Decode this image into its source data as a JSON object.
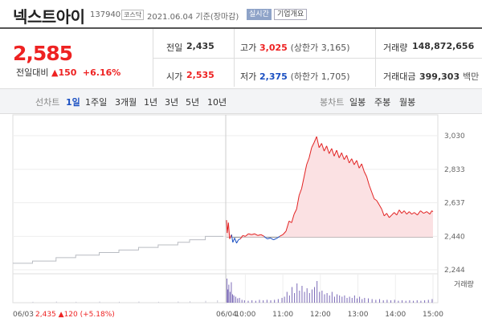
{
  "header": {
    "title": "넥스트아이",
    "code": "137940",
    "market": "코스닥",
    "date_info": "2021.06.04 기준(장마감)",
    "realtime_button": "실시간",
    "company_button": "기업개요"
  },
  "quote": {
    "price": "2,585",
    "change_label": "전일대비",
    "change_arrow": "▲",
    "change_amount": "150",
    "change_percent": "+6.16%"
  },
  "stats": {
    "prev_label": "전일",
    "prev_value": "2,435",
    "high_label": "고가",
    "high_value": "3,025",
    "upper_limit": "(상한가 3,165)",
    "volume_label": "거래량",
    "volume_value": "148,872,656",
    "open_label": "시가",
    "open_value": "2,535",
    "low_label": "저가",
    "low_value": "2,375",
    "lower_limit": "(하한가 1,705)",
    "amount_label": "거래대금",
    "amount_value": "399,303",
    "amount_unit": "백만"
  },
  "periods": {
    "line_chart": "선차트",
    "items": [
      "1일",
      "1주일",
      "3개월",
      "1년",
      "3년",
      "5년",
      "10년"
    ],
    "selected": "1일",
    "candle_chart": "봉차트",
    "candle_items": [
      "일봉",
      "주봉",
      "월봉"
    ]
  },
  "colors": {
    "up": "#e22222",
    "down": "#1a4fc2",
    "prev_day": "#b9bcc2",
    "fill": "#fbe1e3"
  },
  "chart_data": {
    "type": "line",
    "yticks": [
      3030,
      2833,
      2637,
      2440,
      2244
    ],
    "ytick_labels": [
      "3,030",
      "2,833",
      "2,637",
      "2,440",
      "2,244"
    ],
    "ylim": [
      2244,
      3030
    ],
    "xticks": [
      {
        "t": 0,
        "label": "06/04"
      },
      {
        "t": 30,
        "label": "10:00"
      },
      {
        "t": 90,
        "label": "11:00"
      },
      {
        "t": 150,
        "label": "12:00"
      },
      {
        "t": 210,
        "label": "13:00"
      },
      {
        "t": 270,
        "label": "14:00"
      },
      {
        "t": 330,
        "label": "15:00"
      }
    ],
    "prev_day_label": "06/03",
    "prev_day_close": "2,435",
    "prev_day_arrow": "▲",
    "prev_day_change": "120",
    "prev_day_change_pct": "(+5.18%)",
    "volume_legend": "거래량",
    "baseline": 2435,
    "prev_series": [
      {
        "t": -270,
        "y": 2282
      },
      {
        "t": -245,
        "y": 2282
      },
      {
        "t": -245,
        "y": 2295
      },
      {
        "t": -215,
        "y": 2295
      },
      {
        "t": -215,
        "y": 2315
      },
      {
        "t": -190,
        "y": 2315
      },
      {
        "t": -190,
        "y": 2330
      },
      {
        "t": -160,
        "y": 2330
      },
      {
        "t": -160,
        "y": 2345
      },
      {
        "t": -135,
        "y": 2345
      },
      {
        "t": -135,
        "y": 2360
      },
      {
        "t": -110,
        "y": 2360
      },
      {
        "t": -110,
        "y": 2375
      },
      {
        "t": -85,
        "y": 2375
      },
      {
        "t": -85,
        "y": 2390
      },
      {
        "t": -60,
        "y": 2390
      },
      {
        "t": -60,
        "y": 2405
      },
      {
        "t": -45,
        "y": 2405
      },
      {
        "t": -45,
        "y": 2420
      },
      {
        "t": -25,
        "y": 2420
      },
      {
        "t": -25,
        "y": 2440
      },
      {
        "t": -2,
        "y": 2440
      }
    ],
    "day_series": [
      {
        "t": 0,
        "y": 2535
      },
      {
        "t": 1,
        "y": 2460
      },
      {
        "t": 3,
        "y": 2520
      },
      {
        "t": 5,
        "y": 2425
      },
      {
        "t": 8,
        "y": 2450
      },
      {
        "t": 10,
        "y": 2405
      },
      {
        "t": 13,
        "y": 2430
      },
      {
        "t": 16,
        "y": 2400
      },
      {
        "t": 19,
        "y": 2420
      },
      {
        "t": 22,
        "y": 2425
      },
      {
        "t": 26,
        "y": 2445
      },
      {
        "t": 30,
        "y": 2440
      },
      {
        "t": 35,
        "y": 2455
      },
      {
        "t": 40,
        "y": 2450
      },
      {
        "t": 45,
        "y": 2455
      },
      {
        "t": 50,
        "y": 2445
      },
      {
        "t": 55,
        "y": 2450
      },
      {
        "t": 60,
        "y": 2440
      },
      {
        "t": 65,
        "y": 2425
      },
      {
        "t": 70,
        "y": 2430
      },
      {
        "t": 75,
        "y": 2420
      },
      {
        "t": 80,
        "y": 2428
      },
      {
        "t": 85,
        "y": 2440
      },
      {
        "t": 90,
        "y": 2450
      },
      {
        "t": 95,
        "y": 2470
      },
      {
        "t": 100,
        "y": 2530
      },
      {
        "t": 104,
        "y": 2520
      },
      {
        "t": 108,
        "y": 2570
      },
      {
        "t": 112,
        "y": 2600
      },
      {
        "t": 116,
        "y": 2680
      },
      {
        "t": 120,
        "y": 2720
      },
      {
        "t": 124,
        "y": 2790
      },
      {
        "t": 128,
        "y": 2860
      },
      {
        "t": 132,
        "y": 2900
      },
      {
        "t": 136,
        "y": 2960
      },
      {
        "t": 140,
        "y": 2990
      },
      {
        "t": 144,
        "y": 3025
      },
      {
        "t": 148,
        "y": 2960
      },
      {
        "t": 152,
        "y": 2985
      },
      {
        "t": 156,
        "y": 2940
      },
      {
        "t": 160,
        "y": 2970
      },
      {
        "t": 164,
        "y": 2925
      },
      {
        "t": 168,
        "y": 2955
      },
      {
        "t": 172,
        "y": 2910
      },
      {
        "t": 176,
        "y": 2945
      },
      {
        "t": 180,
        "y": 2900
      },
      {
        "t": 184,
        "y": 2930
      },
      {
        "t": 188,
        "y": 2890
      },
      {
        "t": 192,
        "y": 2915
      },
      {
        "t": 196,
        "y": 2870
      },
      {
        "t": 200,
        "y": 2895
      },
      {
        "t": 204,
        "y": 2860
      },
      {
        "t": 208,
        "y": 2885
      },
      {
        "t": 212,
        "y": 2840
      },
      {
        "t": 216,
        "y": 2865
      },
      {
        "t": 220,
        "y": 2820
      },
      {
        "t": 224,
        "y": 2790
      },
      {
        "t": 228,
        "y": 2740
      },
      {
        "t": 232,
        "y": 2700
      },
      {
        "t": 236,
        "y": 2660
      },
      {
        "t": 240,
        "y": 2650
      },
      {
        "t": 244,
        "y": 2625
      },
      {
        "t": 248,
        "y": 2600
      },
      {
        "t": 252,
        "y": 2560
      },
      {
        "t": 256,
        "y": 2575
      },
      {
        "t": 260,
        "y": 2550
      },
      {
        "t": 264,
        "y": 2565
      },
      {
        "t": 268,
        "y": 2580
      },
      {
        "t": 272,
        "y": 2565
      },
      {
        "t": 276,
        "y": 2595
      },
      {
        "t": 280,
        "y": 2575
      },
      {
        "t": 284,
        "y": 2590
      },
      {
        "t": 288,
        "y": 2570
      },
      {
        "t": 292,
        "y": 2585
      },
      {
        "t": 296,
        "y": 2570
      },
      {
        "t": 300,
        "y": 2580
      },
      {
        "t": 305,
        "y": 2565
      },
      {
        "t": 310,
        "y": 2590
      },
      {
        "t": 315,
        "y": 2575
      },
      {
        "t": 320,
        "y": 2585
      },
      {
        "t": 325,
        "y": 2570
      },
      {
        "t": 328,
        "y": 2590
      },
      {
        "t": 330,
        "y": 2585
      }
    ],
    "prev_volume": [
      {
        "t": -245,
        "v": 0.04
      },
      {
        "t": -215,
        "v": 0.05
      },
      {
        "t": -190,
        "v": 0.04
      },
      {
        "t": -160,
        "v": 0.05
      },
      {
        "t": -135,
        "v": 0.04
      },
      {
        "t": -110,
        "v": 0.05
      },
      {
        "t": -85,
        "v": 0.04
      },
      {
        "t": -60,
        "v": 0.05
      },
      {
        "t": -45,
        "v": 0.06
      },
      {
        "t": -25,
        "v": 0.08
      },
      {
        "t": -10,
        "v": 0.1
      }
    ],
    "day_volume": [
      {
        "t": 0,
        "v": 1.0
      },
      {
        "t": 1.5,
        "v": 0.55
      },
      {
        "t": 3,
        "v": 0.75
      },
      {
        "t": 5,
        "v": 0.45
      },
      {
        "t": 7,
        "v": 0.85
      },
      {
        "t": 9,
        "v": 0.35
      },
      {
        "t": 11,
        "v": 0.3
      },
      {
        "t": 14,
        "v": 0.25
      },
      {
        "t": 17,
        "v": 0.18
      },
      {
        "t": 20,
        "v": 0.2
      },
      {
        "t": 24,
        "v": 0.12
      },
      {
        "t": 28,
        "v": 0.1
      },
      {
        "t": 34,
        "v": 0.08
      },
      {
        "t": 40,
        "v": 0.1
      },
      {
        "t": 46,
        "v": 0.08
      },
      {
        "t": 52,
        "v": 0.12
      },
      {
        "t": 58,
        "v": 0.1
      },
      {
        "t": 64,
        "v": 0.12
      },
      {
        "t": 70,
        "v": 0.1
      },
      {
        "t": 76,
        "v": 0.12
      },
      {
        "t": 82,
        "v": 0.15
      },
      {
        "t": 88,
        "v": 0.2
      },
      {
        "t": 92,
        "v": 0.25
      },
      {
        "t": 96,
        "v": 0.45
      },
      {
        "t": 100,
        "v": 0.3
      },
      {
        "t": 104,
        "v": 0.65
      },
      {
        "t": 108,
        "v": 0.4
      },
      {
        "t": 112,
        "v": 0.8
      },
      {
        "t": 116,
        "v": 0.5
      },
      {
        "t": 120,
        "v": 0.7
      },
      {
        "t": 124,
        "v": 0.45
      },
      {
        "t": 128,
        "v": 0.6
      },
      {
        "t": 132,
        "v": 0.4
      },
      {
        "t": 136,
        "v": 0.55
      },
      {
        "t": 140,
        "v": 0.65
      },
      {
        "t": 144,
        "v": 0.9
      },
      {
        "t": 148,
        "v": 0.45
      },
      {
        "t": 152,
        "v": 0.5
      },
      {
        "t": 156,
        "v": 0.35
      },
      {
        "t": 160,
        "v": 0.4
      },
      {
        "t": 164,
        "v": 0.3
      },
      {
        "t": 168,
        "v": 0.45
      },
      {
        "t": 172,
        "v": 0.25
      },
      {
        "t": 176,
        "v": 0.35
      },
      {
        "t": 180,
        "v": 0.3
      },
      {
        "t": 184,
        "v": 0.25
      },
      {
        "t": 188,
        "v": 0.3
      },
      {
        "t": 192,
        "v": 0.2
      },
      {
        "t": 196,
        "v": 0.25
      },
      {
        "t": 200,
        "v": 0.2
      },
      {
        "t": 204,
        "v": 0.3
      },
      {
        "t": 208,
        "v": 0.18
      },
      {
        "t": 212,
        "v": 0.25
      },
      {
        "t": 216,
        "v": 0.15
      },
      {
        "t": 220,
        "v": 0.2
      },
      {
        "t": 226,
        "v": 0.18
      },
      {
        "t": 232,
        "v": 0.15
      },
      {
        "t": 238,
        "v": 0.12
      },
      {
        "t": 244,
        "v": 0.15
      },
      {
        "t": 250,
        "v": 0.1
      },
      {
        "t": 256,
        "v": 0.12
      },
      {
        "t": 262,
        "v": 0.1
      },
      {
        "t": 268,
        "v": 0.12
      },
      {
        "t": 274,
        "v": 0.08
      },
      {
        "t": 280,
        "v": 0.1
      },
      {
        "t": 286,
        "v": 0.08
      },
      {
        "t": 292,
        "v": 0.1
      },
      {
        "t": 298,
        "v": 0.08
      },
      {
        "t": 304,
        "v": 0.1
      },
      {
        "t": 310,
        "v": 0.08
      },
      {
        "t": 316,
        "v": 0.1
      },
      {
        "t": 322,
        "v": 0.12
      },
      {
        "t": 328,
        "v": 0.15
      }
    ]
  }
}
